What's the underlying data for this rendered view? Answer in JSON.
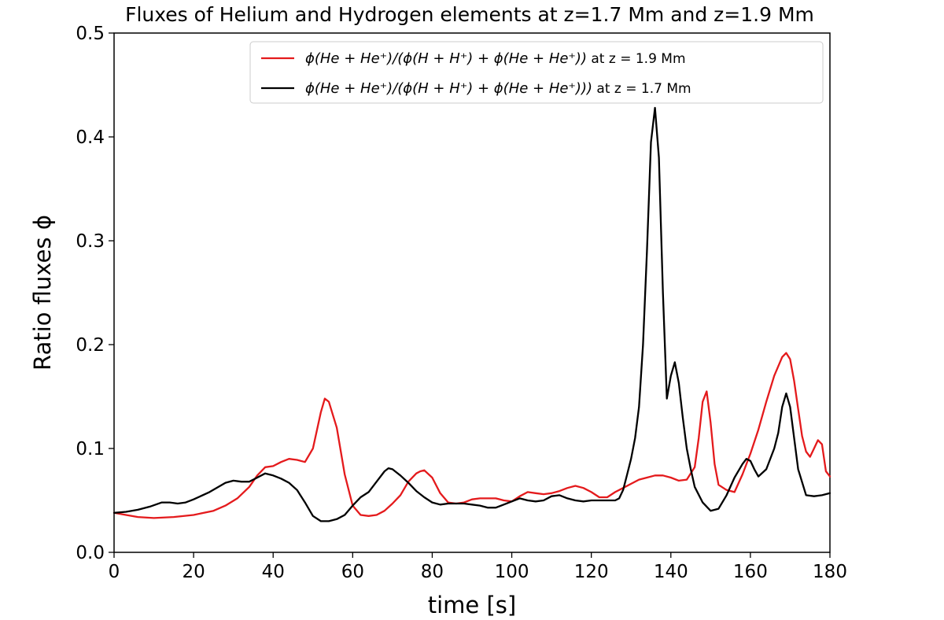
{
  "chart_data": {
    "type": "line",
    "title": "Fluxes of Helium and Hydrogen elements at z=1.7 Mm and z=1.9 Mm",
    "xlabel": "time [s]",
    "ylabel": "Ratio fluxes ϕ",
    "xlim": [
      0,
      180
    ],
    "ylim": [
      0,
      0.5
    ],
    "xticks": [
      0,
      20,
      40,
      60,
      80,
      100,
      120,
      140,
      160,
      180
    ],
    "xtick_labels": [
      "0",
      "20",
      "40",
      "60",
      "80",
      "100",
      "120",
      "140",
      "160",
      "180"
    ],
    "yticks": [
      0,
      0.1,
      0.2,
      0.3,
      0.4,
      0.5
    ],
    "ytick_labels": [
      "0.0",
      "0.1",
      "0.2",
      "0.3",
      "0.4",
      "0.5"
    ],
    "grid": false,
    "legend_position": "top-right",
    "series": [
      {
        "name": "ϕ(He + He⁺)/(ϕ(H + H⁺) + ϕ(He + He⁺)) at z = 1.9 Mm",
        "legend": {
          "math": "ϕ(He + He⁺)/(ϕ(H + H⁺) + ϕ(He + He⁺))",
          "suffix": " at z = 1.9 Mm"
        },
        "color": "#e41a1c",
        "x": [
          0,
          3,
          6,
          10,
          15,
          20,
          25,
          28,
          31,
          34,
          36,
          38,
          40,
          42,
          44,
          46,
          48,
          50,
          52,
          53,
          54,
          56,
          58,
          60,
          62,
          64,
          66,
          68,
          70,
          72,
          74,
          76,
          77,
          78,
          80,
          82,
          84,
          86,
          88,
          90,
          92,
          94,
          96,
          98,
          100,
          102,
          104,
          106,
          108,
          110,
          112,
          114,
          116,
          118,
          120,
          122,
          124,
          126,
          128,
          130,
          132,
          134,
          136,
          138,
          140,
          142,
          144,
          146,
          147,
          148,
          149,
          150,
          151,
          152,
          154,
          156,
          158,
          160,
          162,
          164,
          166,
          168,
          169,
          170,
          171,
          172,
          173,
          174,
          175,
          176,
          177,
          178,
          179,
          180
        ],
        "y": [
          0.038,
          0.036,
          0.034,
          0.033,
          0.034,
          0.036,
          0.04,
          0.045,
          0.052,
          0.063,
          0.074,
          0.082,
          0.083,
          0.087,
          0.09,
          0.089,
          0.087,
          0.1,
          0.135,
          0.148,
          0.145,
          0.12,
          0.075,
          0.045,
          0.036,
          0.035,
          0.036,
          0.04,
          0.047,
          0.055,
          0.068,
          0.076,
          0.078,
          0.079,
          0.072,
          0.057,
          0.048,
          0.047,
          0.048,
          0.051,
          0.052,
          0.052,
          0.052,
          0.05,
          0.049,
          0.054,
          0.058,
          0.057,
          0.056,
          0.057,
          0.059,
          0.062,
          0.064,
          0.062,
          0.058,
          0.053,
          0.053,
          0.058,
          0.062,
          0.066,
          0.07,
          0.072,
          0.074,
          0.074,
          0.072,
          0.069,
          0.07,
          0.082,
          0.11,
          0.145,
          0.155,
          0.125,
          0.085,
          0.065,
          0.06,
          0.058,
          0.075,
          0.095,
          0.118,
          0.145,
          0.17,
          0.188,
          0.192,
          0.186,
          0.165,
          0.138,
          0.112,
          0.097,
          0.092,
          0.1,
          0.108,
          0.104,
          0.078,
          0.073
        ]
      },
      {
        "name": "ϕ(He + He⁺)/(ϕ(H + H⁺) + ϕ(He + He⁺))) at z = 1.7 Mm",
        "legend": {
          "math": "ϕ(He + He⁺)/(ϕ(H + H⁺) + ϕ(He + He⁺)))",
          "suffix": " at z = 1.7 Mm"
        },
        "color": "#000000",
        "x": [
          0,
          3,
          6,
          9,
          12,
          14,
          16,
          18,
          20,
          24,
          28,
          30,
          32,
          34,
          36,
          38,
          40,
          42,
          44,
          46,
          48,
          50,
          52,
          54,
          56,
          58,
          60,
          62,
          64,
          66,
          68,
          69,
          70,
          72,
          74,
          76,
          78,
          80,
          82,
          84,
          86,
          88,
          90,
          92,
          94,
          96,
          98,
          100,
          102,
          104,
          106,
          108,
          110,
          112,
          114,
          116,
          118,
          120,
          122,
          124,
          126,
          127,
          128,
          129,
          130,
          131,
          132,
          133,
          134,
          135,
          136,
          137,
          138,
          139,
          140,
          141,
          142,
          143,
          144,
          145,
          146,
          148,
          150,
          152,
          154,
          156,
          158,
          159,
          160,
          161,
          162,
          164,
          166,
          167,
          168,
          169,
          170,
          171,
          172,
          174,
          176,
          178,
          180
        ],
        "y": [
          0.038,
          0.039,
          0.041,
          0.044,
          0.048,
          0.048,
          0.047,
          0.048,
          0.051,
          0.058,
          0.067,
          0.069,
          0.068,
          0.068,
          0.072,
          0.076,
          0.074,
          0.071,
          0.067,
          0.06,
          0.048,
          0.035,
          0.03,
          0.03,
          0.032,
          0.036,
          0.045,
          0.053,
          0.058,
          0.068,
          0.078,
          0.081,
          0.08,
          0.074,
          0.067,
          0.059,
          0.053,
          0.048,
          0.046,
          0.047,
          0.047,
          0.047,
          0.046,
          0.045,
          0.043,
          0.043,
          0.046,
          0.049,
          0.052,
          0.05,
          0.049,
          0.05,
          0.054,
          0.055,
          0.052,
          0.05,
          0.049,
          0.05,
          0.05,
          0.05,
          0.05,
          0.052,
          0.06,
          0.075,
          0.09,
          0.11,
          0.14,
          0.2,
          0.29,
          0.395,
          0.428,
          0.38,
          0.25,
          0.148,
          0.17,
          0.183,
          0.163,
          0.13,
          0.1,
          0.08,
          0.063,
          0.048,
          0.04,
          0.042,
          0.055,
          0.072,
          0.085,
          0.09,
          0.088,
          0.08,
          0.073,
          0.08,
          0.1,
          0.115,
          0.14,
          0.153,
          0.14,
          0.11,
          0.08,
          0.055,
          0.054,
          0.055,
          0.057
        ]
      }
    ]
  }
}
